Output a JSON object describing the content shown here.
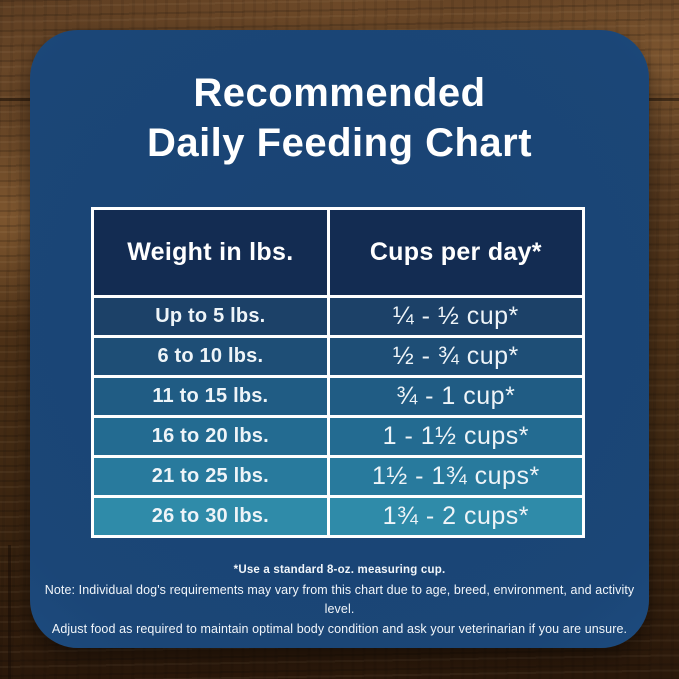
{
  "chart_data": {
    "type": "table",
    "title": "Recommended Daily Feeding Chart",
    "columns": [
      "Weight in lbs.",
      "Cups per day*"
    ],
    "rows": [
      [
        "Up to 5 lbs.",
        "¼ - ½ cup*"
      ],
      [
        "6 to 10 lbs.",
        "½ - ¾ cup*"
      ],
      [
        "11 to 15 lbs.",
        "¾ - 1 cup*"
      ],
      [
        "16 to 20 lbs.",
        "1 - 1½ cups*"
      ],
      [
        "21 to 25 lbs.",
        "1½ - 1¾ cups*"
      ],
      [
        "26 to 30 lbs.",
        "1¾ - 2 cups*"
      ]
    ],
    "footnotes": [
      "*Use a standard 8-oz. measuring cup.",
      "Note: Individual dog's requirements may vary from this chart due to age, breed, environment, and activity level.",
      "Adjust food as required to maintain optimal body condition and ask your veterinarian if you are unsure."
    ]
  },
  "title": {
    "line1": "Recommended",
    "line2": "Daily Feeding Chart"
  },
  "table": {
    "header": {
      "col1": "Weight in lbs.",
      "col2": "Cups per day*"
    },
    "rows": [
      {
        "weight": "Up to 5 lbs.",
        "cups": "¼ - ½ cup*"
      },
      {
        "weight": "6 to 10 lbs.",
        "cups": "½ - ¾ cup*"
      },
      {
        "weight": "11 to 15 lbs.",
        "cups": "¾ - 1 cup*"
      },
      {
        "weight": "16 to 20 lbs.",
        "cups": "1 - 1½ cups*"
      },
      {
        "weight": "21 to 25 lbs.",
        "cups": "1½ - 1¾ cups*"
      },
      {
        "weight": "26 to 30 lbs.",
        "cups": "1¾ - 2 cups*"
      }
    ],
    "row_colors": [
      "#1c4168",
      "#1e4e76",
      "#205c84",
      "#236b91",
      "#287a9d",
      "#2f8ba9"
    ]
  },
  "notes": {
    "line1": "*Use a standard 8-oz. measuring cup.",
    "line2": "Note: Individual dog's requirements may vary from this chart due to age, breed, environment, and activity level.",
    "line3": "Adjust food as required to maintain optimal body condition and ask your veterinarian if you are unsure."
  },
  "colors": {
    "card_center": "#194373",
    "card_base": "#1b4677",
    "card_edge": "#215a94",
    "header_row": "#132c52",
    "table_border": "#ffffff",
    "title_text": "#ffffff",
    "row_text": "#eef4f8",
    "wood_light": "#6b4a2a",
    "wood_mid": "#4f3318",
    "wood_dark": "#2c1b0d"
  }
}
